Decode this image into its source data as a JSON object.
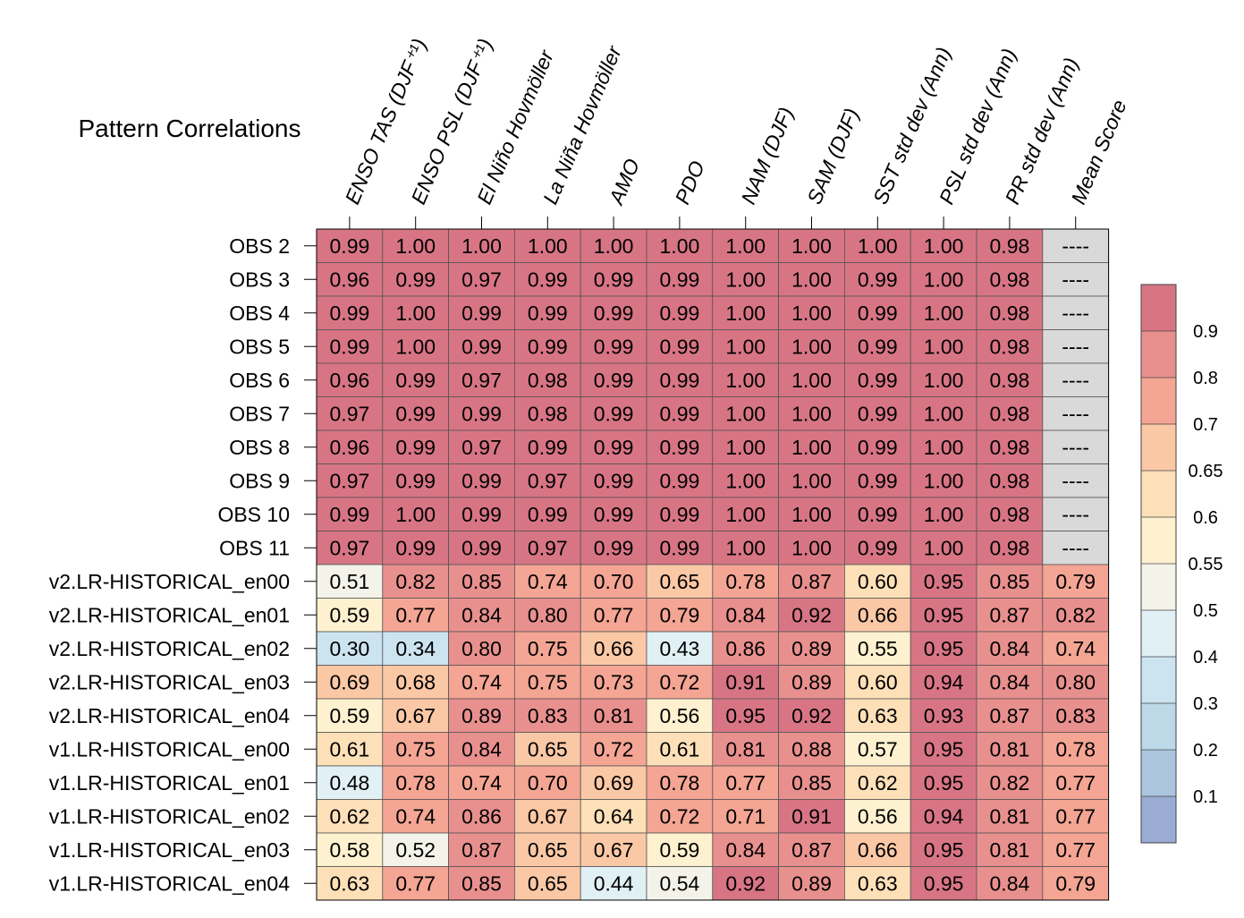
{
  "chart_data": {
    "type": "heatmap",
    "title": "Pattern Correlations",
    "columns": [
      "ENSO TAS (DJF⁺¹)",
      "ENSO PSL (DJF⁺¹)",
      "El Niño Hovmöller",
      "La Niña Hovmöller",
      "AMO",
      "PDO",
      "NAM (DJF)",
      "SAM (DJF)",
      "SST std dev (Ann)",
      "PSL std dev (Ann)",
      "PR std dev (Ann)",
      "Mean Score"
    ],
    "rows": [
      "OBS 2",
      "OBS 3",
      "OBS 4",
      "OBS 5",
      "OBS 6",
      "OBS 7",
      "OBS 8",
      "OBS 9",
      "OBS 10",
      "OBS 11",
      "v2.LR-HISTORICAL_en00",
      "v2.LR-HISTORICAL_en01",
      "v2.LR-HISTORICAL_en02",
      "v2.LR-HISTORICAL_en03",
      "v2.LR-HISTORICAL_en04",
      "v1.LR-HISTORICAL_en00",
      "v1.LR-HISTORICAL_en01",
      "v1.LR-HISTORICAL_en02",
      "v1.LR-HISTORICAL_en03",
      "v1.LR-HISTORICAL_en04"
    ],
    "values": [
      [
        "0.99",
        "1.00",
        "1.00",
        "1.00",
        "1.00",
        "1.00",
        "1.00",
        "1.00",
        "1.00",
        "1.00",
        "0.98",
        "----"
      ],
      [
        "0.96",
        "0.99",
        "0.97",
        "0.99",
        "0.99",
        "0.99",
        "1.00",
        "1.00",
        "0.99",
        "1.00",
        "0.98",
        "----"
      ],
      [
        "0.99",
        "1.00",
        "0.99",
        "0.99",
        "0.99",
        "0.99",
        "1.00",
        "1.00",
        "0.99",
        "1.00",
        "0.98",
        "----"
      ],
      [
        "0.99",
        "1.00",
        "0.99",
        "0.99",
        "0.99",
        "0.99",
        "1.00",
        "1.00",
        "0.99",
        "1.00",
        "0.98",
        "----"
      ],
      [
        "0.96",
        "0.99",
        "0.97",
        "0.98",
        "0.99",
        "0.99",
        "1.00",
        "1.00",
        "0.99",
        "1.00",
        "0.98",
        "----"
      ],
      [
        "0.97",
        "0.99",
        "0.99",
        "0.98",
        "0.99",
        "0.99",
        "1.00",
        "1.00",
        "0.99",
        "1.00",
        "0.98",
        "----"
      ],
      [
        "0.96",
        "0.99",
        "0.97",
        "0.99",
        "0.99",
        "0.99",
        "1.00",
        "1.00",
        "0.99",
        "1.00",
        "0.98",
        "----"
      ],
      [
        "0.97",
        "0.99",
        "0.99",
        "0.97",
        "0.99",
        "0.99",
        "1.00",
        "1.00",
        "0.99",
        "1.00",
        "0.98",
        "----"
      ],
      [
        "0.99",
        "1.00",
        "0.99",
        "0.99",
        "0.99",
        "0.99",
        "1.00",
        "1.00",
        "0.99",
        "1.00",
        "0.98",
        "----"
      ],
      [
        "0.97",
        "0.99",
        "0.99",
        "0.97",
        "0.99",
        "0.99",
        "1.00",
        "1.00",
        "0.99",
        "1.00",
        "0.98",
        "----"
      ],
      [
        "0.51",
        "0.82",
        "0.85",
        "0.74",
        "0.70",
        "0.65",
        "0.78",
        "0.87",
        "0.60",
        "0.95",
        "0.85",
        "0.79"
      ],
      [
        "0.59",
        "0.77",
        "0.84",
        "0.80",
        "0.77",
        "0.79",
        "0.84",
        "0.92",
        "0.66",
        "0.95",
        "0.87",
        "0.82"
      ],
      [
        "0.30",
        "0.34",
        "0.80",
        "0.75",
        "0.66",
        "0.43",
        "0.86",
        "0.89",
        "0.55",
        "0.95",
        "0.84",
        "0.74"
      ],
      [
        "0.69",
        "0.68",
        "0.74",
        "0.75",
        "0.73",
        "0.72",
        "0.91",
        "0.89",
        "0.60",
        "0.94",
        "0.84",
        "0.80"
      ],
      [
        "0.59",
        "0.67",
        "0.89",
        "0.83",
        "0.81",
        "0.56",
        "0.95",
        "0.92",
        "0.63",
        "0.93",
        "0.87",
        "0.83"
      ],
      [
        "0.61",
        "0.75",
        "0.84",
        "0.65",
        "0.72",
        "0.61",
        "0.81",
        "0.88",
        "0.57",
        "0.95",
        "0.81",
        "0.78"
      ],
      [
        "0.48",
        "0.78",
        "0.74",
        "0.70",
        "0.69",
        "0.78",
        "0.77",
        "0.85",
        "0.62",
        "0.95",
        "0.82",
        "0.77"
      ],
      [
        "0.62",
        "0.74",
        "0.86",
        "0.67",
        "0.64",
        "0.72",
        "0.71",
        "0.91",
        "0.56",
        "0.94",
        "0.81",
        "0.77"
      ],
      [
        "0.58",
        "0.52",
        "0.87",
        "0.65",
        "0.67",
        "0.59",
        "0.84",
        "0.87",
        "0.66",
        "0.95",
        "0.81",
        "0.77"
      ],
      [
        "0.63",
        "0.77",
        "0.85",
        "0.65",
        "0.44",
        "0.54",
        "0.92",
        "0.89",
        "0.63",
        "0.95",
        "0.84",
        "0.79"
      ]
    ],
    "missing_color": "#d9d9d9",
    "colorbar": {
      "levels": [
        0.1,
        0.2,
        0.3,
        0.4,
        0.5,
        0.55,
        0.6,
        0.65,
        0.7,
        0.8,
        0.9
      ],
      "tick_labels": [
        "0.1",
        "0.2",
        "0.3",
        "0.4",
        "0.5",
        "0.55",
        "0.6",
        "0.65",
        "0.7",
        "0.8",
        "0.9"
      ],
      "colors": [
        "#9aacd3",
        "#acc5df",
        "#bdd9e8",
        "#cce4ef",
        "#e0f0f5",
        "#f3f3e9",
        "#fdf1cf",
        "#fde0b8",
        "#fbc8a6",
        "#f4a594",
        "#e8908e",
        "#d87585"
      ]
    }
  }
}
